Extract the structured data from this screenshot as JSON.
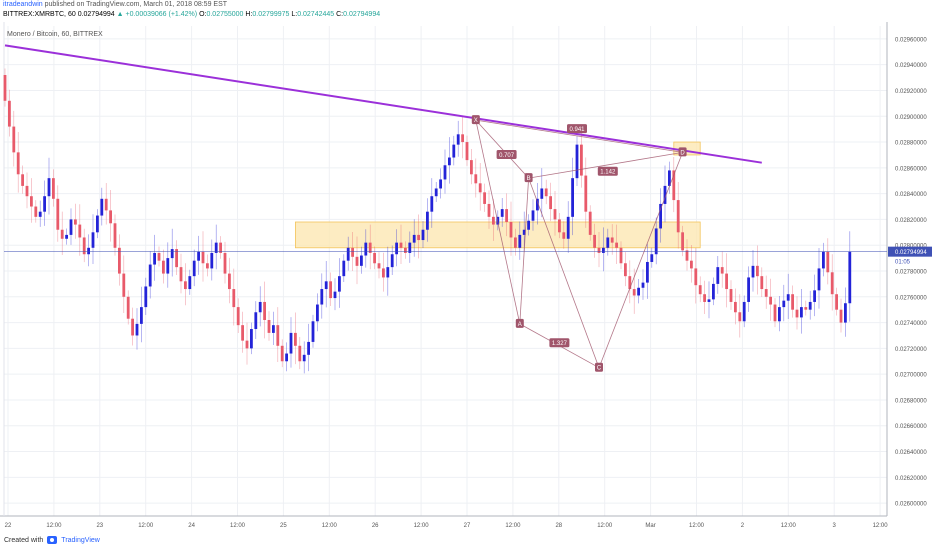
{
  "header": {
    "user": "itradeandwin",
    "published": " published on TradingView.com, March 01, 2018 08:59 EST",
    "symbol_line": "BITTREX:XMRBTC, 60",
    "last": "0.02794994",
    "change": "▲ +0.00039066 (+1.42%)",
    "o_label": "O:",
    "o": "0.02755000",
    "h_label": "H:",
    "h": "0.02799975",
    "l_label": "L:",
    "l": "0.02742445",
    "c_label": "C:",
    "c": "0.02794994"
  },
  "footer": {
    "created": "Created with",
    "brand": "TradingView"
  },
  "colors": {
    "up": "#2323d8",
    "down": "#e85a6a",
    "trendline": "#9b30d9",
    "zone_fill": "#fde7b3",
    "zone_border": "#f3c45c",
    "pattern": "#a0556b",
    "price_line": "#3f51b5"
  },
  "chart_data": {
    "type": "candlestick",
    "title": "Monero / Bitcoin, 60, BITTREX",
    "ylim": [
      0.0259,
      0.0297
    ],
    "y_ticks": [
      "0.02960000",
      "0.02940000",
      "0.02920000",
      "0.02900000",
      "0.02880000",
      "0.02860000",
      "0.02840000",
      "0.02820000",
      "0.02800000",
      "0.02780000",
      "0.02760000",
      "0.02740000",
      "0.02720000",
      "0.02700000",
      "0.02680000",
      "0.02660000",
      "0.02640000",
      "0.02620000",
      "0.02600000"
    ],
    "x_ticks": [
      "22",
      "12:00",
      "23",
      "12:00",
      "24",
      "12:00",
      "25",
      "12:00",
      "26",
      "12:00",
      "27",
      "12:00",
      "28",
      "12:00",
      "Mar",
      "12:00",
      "2",
      "12:00",
      "3",
      "12:00"
    ],
    "last_price": "0.02794994",
    "last_price_value": 0.02795,
    "countdown": "01:05",
    "trendline": {
      "from": [
        0,
        0.02955
      ],
      "to": [
        172,
        0.02864
      ]
    },
    "zones": [
      {
        "from": 66,
        "to": 158,
        "low": 0.02798,
        "high": 0.02818
      },
      {
        "from": 152,
        "to": 158,
        "low": 0.0287,
        "high": 0.0288
      }
    ],
    "pattern_points": [
      {
        "label": "X",
        "x": 107,
        "y": 0.02897
      },
      {
        "label": "A",
        "x": 117,
        "y": 0.02739
      },
      {
        "label": "B",
        "x": 119,
        "y": 0.02852
      },
      {
        "label": "C",
        "x": 135,
        "y": 0.02705
      },
      {
        "label": "D",
        "x": 154,
        "y": 0.02872
      }
    ],
    "ratios": [
      {
        "label": "0.707",
        "x": 114,
        "y": 0.0287
      },
      {
        "label": "1.327",
        "x": 126,
        "y": 0.02724
      },
      {
        "label": "1.142",
        "x": 137,
        "y": 0.02857
      },
      {
        "label": "0.941",
        "x": 130,
        "y": 0.0289
      }
    ],
    "closes": [
      0.02912,
      0.02892,
      0.02872,
      0.02855,
      0.02846,
      0.02838,
      0.0283,
      0.02822,
      0.02826,
      0.02838,
      0.02852,
      0.02836,
      0.02812,
      0.02805,
      0.02808,
      0.0282,
      0.02816,
      0.02806,
      0.02793,
      0.02798,
      0.0281,
      0.02823,
      0.02836,
      0.02827,
      0.02817,
      0.02798,
      0.02778,
      0.0276,
      0.02743,
      0.0273,
      0.02739,
      0.02752,
      0.02768,
      0.02785,
      0.02794,
      0.02788,
      0.02778,
      0.0279,
      0.02797,
      0.02783,
      0.02772,
      0.02766,
      0.02776,
      0.02788,
      0.02795,
      0.02786,
      0.02782,
      0.02794,
      0.02802,
      0.02794,
      0.02778,
      0.02766,
      0.02752,
      0.02738,
      0.02726,
      0.0272,
      0.02735,
      0.02748,
      0.02756,
      0.02742,
      0.02732,
      0.02738,
      0.02722,
      0.0271,
      0.02716,
      0.02732,
      0.02722,
      0.0271,
      0.02715,
      0.02725,
      0.02741,
      0.02754,
      0.02766,
      0.02772,
      0.02759,
      0.02764,
      0.02776,
      0.02788,
      0.02798,
      0.02791,
      0.02784,
      0.02792,
      0.02802,
      0.02794,
      0.02786,
      0.02782,
      0.02775,
      0.02783,
      0.02793,
      0.02802,
      0.02798,
      0.02794,
      0.02802,
      0.02808,
      0.02804,
      0.02812,
      0.02826,
      0.02838,
      0.02844,
      0.02851,
      0.02862,
      0.02868,
      0.02878,
      0.02886,
      0.0288,
      0.02866,
      0.02855,
      0.02848,
      0.02841,
      0.02832,
      0.02822,
      0.02816,
      0.02822,
      0.02828,
      0.02818,
      0.02806,
      0.02798,
      0.02808,
      0.02812,
      0.02819,
      0.02827,
      0.02836,
      0.02844,
      0.02838,
      0.02828,
      0.0282,
      0.0281,
      0.02805,
      0.02822,
      0.02852,
      0.02878,
      0.02854,
      0.02826,
      0.02808,
      0.02798,
      0.02794,
      0.02798,
      0.02806,
      0.02802,
      0.02798,
      0.02786,
      0.02776,
      0.02766,
      0.02761,
      0.02767,
      0.02771,
      0.02787,
      0.02793,
      0.02813,
      0.02832,
      0.02846,
      0.02858,
      0.02835,
      0.0281,
      0.02796,
      0.02788,
      0.02782,
      0.02769,
      0.02762,
      0.02756,
      0.02758,
      0.0277,
      0.02783,
      0.02778,
      0.02766,
      0.02756,
      0.02748,
      0.02741,
      0.02756,
      0.02775,
      0.02784,
      0.02776,
      0.02766,
      0.0276,
      0.02754,
      0.02741,
      0.02752,
      0.02757,
      0.02762,
      0.0275,
      0.02744,
      0.02752,
      0.0275,
      0.02756,
      0.02765,
      0.02782,
      0.02795,
      0.02779,
      0.02762,
      0.0275,
      0.0274,
      0.02755,
      0.02795
    ]
  }
}
